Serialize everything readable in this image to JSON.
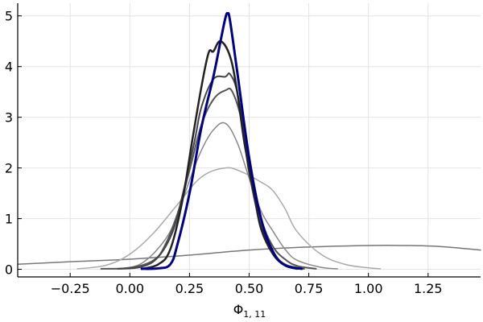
{
  "chart_data": {
    "type": "line",
    "title": "",
    "xlabel": "Φ",
    "xlabel_subscript": "1, 11",
    "ylabel": "",
    "xlim": [
      -0.47,
      1.47
    ],
    "ylim": [
      -0.15,
      5.25
    ],
    "xticks": [
      -0.25,
      0.0,
      0.25,
      0.5,
      0.75,
      1.0,
      1.25
    ],
    "xtick_labels": [
      "−0.25",
      "0.00",
      "0.25",
      "0.50",
      "0.75",
      "1.00",
      "1.25"
    ],
    "yticks": [
      0,
      1,
      2,
      3,
      4,
      5
    ],
    "ytick_labels": [
      "0",
      "1",
      "2",
      "3",
      "4",
      "5"
    ],
    "grid": true,
    "legend": "none",
    "series": [
      {
        "color": "#777777",
        "width": 1.5,
        "x": [
          -0.47,
          -0.25,
          0.0,
          0.25,
          0.5,
          0.75,
          1.0,
          1.15,
          1.3,
          1.47
        ],
        "y": [
          0.1,
          0.15,
          0.2,
          0.28,
          0.38,
          0.44,
          0.47,
          0.47,
          0.45,
          0.38
        ]
      },
      {
        "color": "#aaaaaa",
        "width": 1.5,
        "x": [
          -0.22,
          -0.1,
          0.0,
          0.1,
          0.2,
          0.3,
          0.4,
          0.47,
          0.55,
          0.6,
          0.65,
          0.7,
          0.8,
          0.9,
          1.0,
          1.05
        ],
        "y": [
          0.01,
          0.08,
          0.3,
          0.72,
          1.28,
          1.82,
          2.0,
          1.92,
          1.72,
          1.55,
          1.2,
          0.75,
          0.3,
          0.1,
          0.03,
          0.01
        ]
      },
      {
        "color": "#888888",
        "width": 1.5,
        "x": [
          -0.05,
          0.05,
          0.15,
          0.2,
          0.25,
          0.3,
          0.35,
          0.4,
          0.45,
          0.5,
          0.55,
          0.6,
          0.65,
          0.7,
          0.8,
          0.87
        ],
        "y": [
          0.01,
          0.12,
          0.6,
          1.1,
          1.75,
          2.35,
          2.75,
          2.88,
          2.5,
          1.8,
          1.15,
          0.75,
          0.4,
          0.18,
          0.04,
          0.01
        ]
      },
      {
        "color": "#555555",
        "width": 2,
        "x": [
          -0.12,
          0.0,
          0.1,
          0.15,
          0.2,
          0.25,
          0.3,
          0.35,
          0.4,
          0.43,
          0.47,
          0.5,
          0.55,
          0.6,
          0.65,
          0.7,
          0.78
        ],
        "y": [
          0.01,
          0.03,
          0.18,
          0.5,
          1.1,
          1.95,
          2.85,
          3.35,
          3.53,
          3.5,
          2.9,
          2.0,
          1.0,
          0.45,
          0.2,
          0.07,
          0.01
        ]
      },
      {
        "color": "#444444",
        "width": 2,
        "x": [
          -0.05,
          0.05,
          0.12,
          0.18,
          0.22,
          0.27,
          0.3,
          0.35,
          0.4,
          0.42,
          0.45,
          0.48,
          0.5,
          0.55,
          0.6,
          0.65,
          0.73
        ],
        "y": [
          0.01,
          0.05,
          0.25,
          0.75,
          1.45,
          2.5,
          3.2,
          3.75,
          3.8,
          3.85,
          3.5,
          2.6,
          1.9,
          0.85,
          0.35,
          0.1,
          0.01
        ]
      },
      {
        "color": "#222222",
        "width": 2.5,
        "x": [
          0.05,
          0.12,
          0.17,
          0.22,
          0.26,
          0.3,
          0.33,
          0.35,
          0.38,
          0.42,
          0.45,
          0.48,
          0.52,
          0.55,
          0.6,
          0.65,
          0.7
        ],
        "y": [
          0.01,
          0.1,
          0.4,
          1.35,
          2.5,
          3.6,
          4.27,
          4.3,
          4.5,
          4.2,
          3.5,
          2.5,
          1.5,
          0.8,
          0.3,
          0.08,
          0.01
        ]
      },
      {
        "color": "#00008b",
        "width": 3,
        "x": [
          0.05,
          0.12,
          0.17,
          0.2,
          0.25,
          0.3,
          0.35,
          0.38,
          0.4,
          0.41,
          0.42,
          0.45,
          0.5,
          0.55,
          0.6,
          0.65,
          0.72
        ],
        "y": [
          0.01,
          0.02,
          0.1,
          0.5,
          1.5,
          2.8,
          3.8,
          4.5,
          4.95,
          5.05,
          4.9,
          3.9,
          2.2,
          1.0,
          0.35,
          0.08,
          0.01
        ]
      }
    ]
  }
}
